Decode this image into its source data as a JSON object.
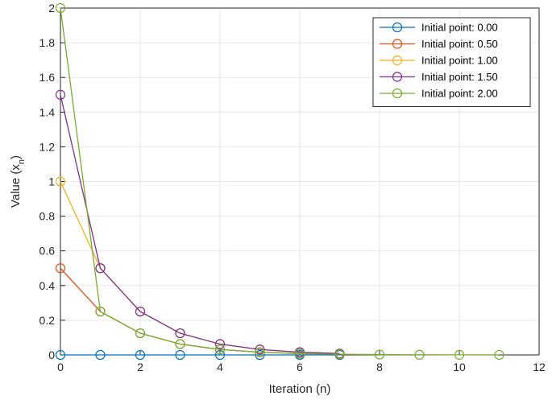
{
  "chart_data": {
    "type": "line",
    "xlabel": "Iteration (n)",
    "ylabel": "Value (x",
    "ylabel_subscript": "n",
    "ylabel_close": ")",
    "xlim": [
      0,
      12
    ],
    "ylim": [
      0,
      2
    ],
    "xticks": [
      0,
      2,
      4,
      6,
      8,
      10,
      12
    ],
    "yticks": [
      0,
      0.2,
      0.4,
      0.6,
      0.8,
      1,
      1.2,
      1.4,
      1.6,
      1.8,
      2
    ],
    "xtick_labels": [
      "0",
      "2",
      "4",
      "6",
      "8",
      "10",
      "12"
    ],
    "ytick_labels": [
      "0",
      "0.2",
      "0.4",
      "0.6",
      "0.8",
      "1",
      "1.2",
      "1.4",
      "1.6",
      "1.8",
      "2"
    ],
    "grid": true,
    "legend_position": "top-right",
    "marker": "circle",
    "series": [
      {
        "name": "Initial point: 0.00",
        "color": "#0072BD",
        "x": [
          0,
          1,
          2,
          3,
          4,
          5,
          6,
          7
        ],
        "y": [
          0,
          0,
          0,
          0,
          0,
          0,
          0,
          0
        ]
      },
      {
        "name": "Initial point: 0.50",
        "color": "#D95319",
        "x": [
          0,
          1,
          2,
          3,
          4,
          5,
          6,
          7
        ],
        "y": [
          0.5,
          0.25,
          0.125,
          0.0625,
          0.03125,
          0.015625,
          0.0078,
          0.0039
        ]
      },
      {
        "name": "Initial point: 1.00",
        "color": "#EDB120",
        "x": [
          0,
          1,
          2,
          3,
          4,
          5,
          6,
          7
        ],
        "y": [
          1,
          0.5,
          0.25,
          0.125,
          0.0625,
          0.03125,
          0.015625,
          0.0078
        ]
      },
      {
        "name": "Initial point: 1.50",
        "color": "#7E2F8E",
        "x": [
          0,
          1,
          2,
          3,
          4,
          5,
          6,
          7
        ],
        "y": [
          1.5,
          0.5,
          0.25,
          0.125,
          0.0625,
          0.03125,
          0.015625,
          0.0078
        ]
      },
      {
        "name": "Initial point: 2.00",
        "color": "#77AC30",
        "x": [
          0,
          1,
          2,
          3,
          4,
          5,
          6,
          7,
          8,
          9,
          10,
          11
        ],
        "y": [
          2,
          0.25,
          0.125,
          0.0625,
          0.03125,
          0.015625,
          0.0078,
          0.0039,
          0.002,
          0.001,
          0.0005,
          0.0002
        ]
      }
    ]
  }
}
